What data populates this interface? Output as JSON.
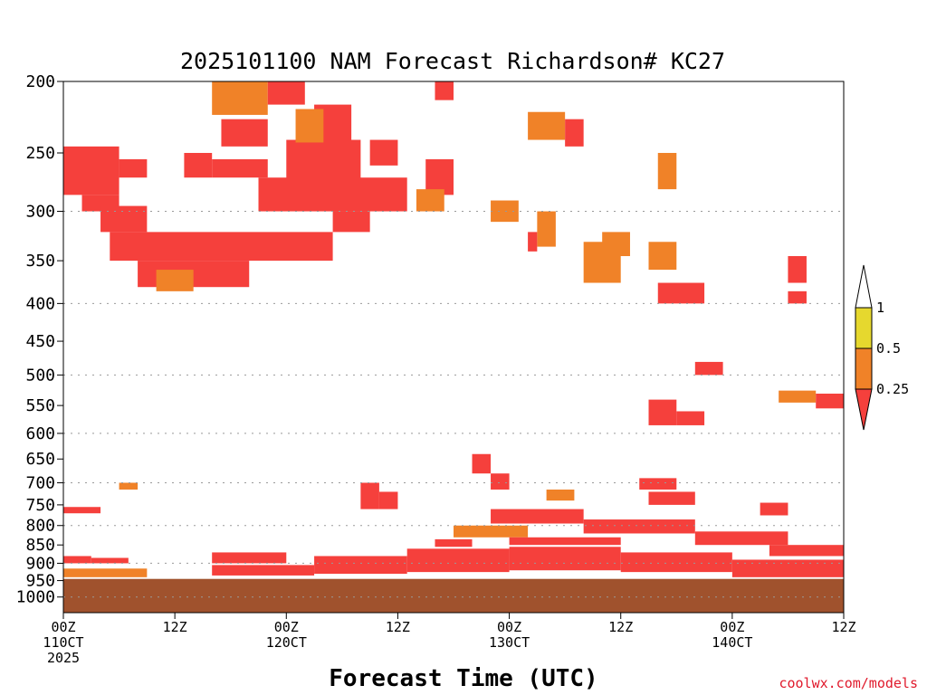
{
  "chart_data": {
    "type": "heatmap",
    "title": "2025101100 NAM Forecast Richardson# KC27",
    "xlabel": "Forecast Time (UTC)",
    "ylabel": "",
    "credit": "coolwx.com/models",
    "x_range_hours": [
      0,
      84
    ],
    "y_range_hpa": [
      1050,
      200
    ],
    "y_scale": "log-pressure",
    "y_ticks": [
      "200",
      "250",
      "300",
      "350",
      "400",
      "450",
      "500",
      "550",
      "600",
      "650",
      "700",
      "750",
      "800",
      "850",
      "900",
      "950",
      "1000"
    ],
    "y_gridlines": [
      300,
      400,
      500,
      600,
      700,
      800,
      900,
      1000
    ],
    "x_ticks": [
      {
        "hour": 0,
        "line1": "00Z",
        "line2": "110CT",
        "line3": "2025"
      },
      {
        "hour": 12,
        "line1": "12Z",
        "line2": "",
        "line3": ""
      },
      {
        "hour": 24,
        "line1": "00Z",
        "line2": "120CT",
        "line3": ""
      },
      {
        "hour": 36,
        "line1": "12Z",
        "line2": "",
        "line3": ""
      },
      {
        "hour": 48,
        "line1": "00Z",
        "line2": "130CT",
        "line3": ""
      },
      {
        "hour": 60,
        "line1": "12Z",
        "line2": "",
        "line3": ""
      },
      {
        "hour": 72,
        "line1": "00Z",
        "line2": "140CT",
        "line3": ""
      },
      {
        "hour": 84,
        "line1": "12Z",
        "line2": "",
        "line3": ""
      }
    ],
    "legend": {
      "position": "right",
      "labels": [
        "1",
        "0.5",
        "0.25"
      ],
      "bins": [
        {
          "range": "0.5 - 1",
          "color": "#e6d82e"
        },
        {
          "range": "0.25 - 0.5",
          "color": "#f08228"
        },
        {
          "range": "< 0.25",
          "color": "#f5403c"
        }
      ]
    },
    "colors": {
      "low": "#f5403c",
      "mid": "#f08228",
      "high": "#e6d82e",
      "ground": "#a0522d"
    },
    "regions": [
      {
        "t0": 0,
        "t1": 6,
        "p0": 245,
        "p1": 285,
        "bin": "low"
      },
      {
        "t0": 2,
        "t1": 6,
        "p0": 285,
        "p1": 300,
        "bin": "low"
      },
      {
        "t0": 4,
        "t1": 9,
        "p0": 295,
        "p1": 320,
        "bin": "low"
      },
      {
        "t0": 5,
        "t1": 29,
        "p0": 320,
        "p1": 350,
        "bin": "low"
      },
      {
        "t0": 8,
        "t1": 20,
        "p0": 350,
        "p1": 380,
        "bin": "low"
      },
      {
        "t0": 10,
        "t1": 14,
        "p0": 360,
        "p1": 385,
        "bin": "mid"
      },
      {
        "t0": 6,
        "t1": 9,
        "p0": 255,
        "p1": 270,
        "bin": "low"
      },
      {
        "t0": 13,
        "t1": 16,
        "p0": 250,
        "p1": 270,
        "bin": "low"
      },
      {
        "t0": 16,
        "t1": 22,
        "p0": 255,
        "p1": 270,
        "bin": "low"
      },
      {
        "t0": 17,
        "t1": 22,
        "p0": 225,
        "p1": 245,
        "bin": "low"
      },
      {
        "t0": 16,
        "t1": 22,
        "p0": 200,
        "p1": 222,
        "bin": "mid"
      },
      {
        "t0": 22,
        "t1": 26,
        "p0": 200,
        "p1": 215,
        "bin": "low"
      },
      {
        "t0": 21,
        "t1": 37,
        "p0": 270,
        "p1": 300,
        "bin": "low"
      },
      {
        "t0": 24,
        "t1": 32,
        "p0": 240,
        "p1": 272,
        "bin": "low"
      },
      {
        "t0": 27,
        "t1": 31,
        "p0": 215,
        "p1": 245,
        "bin": "low"
      },
      {
        "t0": 25,
        "t1": 28,
        "p0": 218,
        "p1": 242,
        "bin": "mid"
      },
      {
        "t0": 29,
        "t1": 33,
        "p0": 300,
        "p1": 320,
        "bin": "low"
      },
      {
        "t0": 33,
        "t1": 36,
        "p0": 240,
        "p1": 260,
        "bin": "low"
      },
      {
        "t0": 39,
        "t1": 42,
        "p0": 255,
        "p1": 285,
        "bin": "low"
      },
      {
        "t0": 40,
        "t1": 42,
        "p0": 200,
        "p1": 212,
        "bin": "low"
      },
      {
        "t0": 38,
        "t1": 41,
        "p0": 280,
        "p1": 300,
        "bin": "mid"
      },
      {
        "t0": 46,
        "t1": 49,
        "p0": 290,
        "p1": 310,
        "bin": "mid"
      },
      {
        "t0": 50,
        "t1": 54,
        "p0": 220,
        "p1": 240,
        "bin": "mid"
      },
      {
        "t0": 54,
        "t1": 56,
        "p0": 225,
        "p1": 245,
        "bin": "low"
      },
      {
        "t0": 51,
        "t1": 53,
        "p0": 300,
        "p1": 335,
        "bin": "mid"
      },
      {
        "t0": 50,
        "t1": 51,
        "p0": 320,
        "p1": 340,
        "bin": "low"
      },
      {
        "t0": 56,
        "t1": 60,
        "p0": 330,
        "p1": 375,
        "bin": "mid"
      },
      {
        "t0": 58,
        "t1": 61,
        "p0": 320,
        "p1": 345,
        "bin": "mid"
      },
      {
        "t0": 64,
        "t1": 66,
        "p0": 250,
        "p1": 280,
        "bin": "mid"
      },
      {
        "t0": 63,
        "t1": 66,
        "p0": 330,
        "p1": 360,
        "bin": "mid"
      },
      {
        "t0": 64,
        "t1": 69,
        "p0": 375,
        "p1": 400,
        "bin": "low"
      },
      {
        "t0": 78,
        "t1": 80,
        "p0": 345,
        "p1": 375,
        "bin": "low"
      },
      {
        "t0": 78,
        "t1": 80,
        "p0": 385,
        "p1": 400,
        "bin": "low"
      },
      {
        "t0": 63,
        "t1": 66,
        "p0": 540,
        "p1": 585,
        "bin": "low"
      },
      {
        "t0": 66,
        "t1": 69,
        "p0": 560,
        "p1": 585,
        "bin": "low"
      },
      {
        "t0": 68,
        "t1": 71,
        "p0": 480,
        "p1": 500,
        "bin": "low"
      },
      {
        "t0": 77,
        "t1": 81,
        "p0": 525,
        "p1": 545,
        "bin": "mid"
      },
      {
        "t0": 81,
        "t1": 84,
        "p0": 530,
        "p1": 555,
        "bin": "low"
      },
      {
        "t0": 6,
        "t1": 8,
        "p0": 700,
        "p1": 715,
        "bin": "mid"
      },
      {
        "t0": 0,
        "t1": 4,
        "p0": 755,
        "p1": 770,
        "bin": "low"
      },
      {
        "t0": 32,
        "t1": 34,
        "p0": 700,
        "p1": 760,
        "bin": "low"
      },
      {
        "t0": 34,
        "t1": 36,
        "p0": 720,
        "p1": 760,
        "bin": "low"
      },
      {
        "t0": 44,
        "t1": 46,
        "p0": 640,
        "p1": 680,
        "bin": "low"
      },
      {
        "t0": 46,
        "t1": 48,
        "p0": 680,
        "p1": 715,
        "bin": "low"
      },
      {
        "t0": 52,
        "t1": 55,
        "p0": 715,
        "p1": 740,
        "bin": "mid"
      },
      {
        "t0": 62,
        "t1": 66,
        "p0": 690,
        "p1": 715,
        "bin": "low"
      },
      {
        "t0": 63,
        "t1": 68,
        "p0": 720,
        "p1": 750,
        "bin": "low"
      },
      {
        "t0": 75,
        "t1": 78,
        "p0": 745,
        "p1": 775,
        "bin": "low"
      },
      {
        "t0": 46,
        "t1": 56,
        "p0": 760,
        "p1": 795,
        "bin": "low"
      },
      {
        "t0": 56,
        "t1": 68,
        "p0": 785,
        "p1": 820,
        "bin": "low"
      },
      {
        "t0": 68,
        "t1": 78,
        "p0": 815,
        "p1": 850,
        "bin": "low"
      },
      {
        "t0": 42,
        "t1": 50,
        "p0": 800,
        "p1": 830,
        "bin": "mid"
      },
      {
        "t0": 76,
        "t1": 84,
        "p0": 850,
        "p1": 880,
        "bin": "low"
      },
      {
        "t0": 0,
        "t1": 3,
        "p0": 880,
        "p1": 900,
        "bin": "low"
      },
      {
        "t0": 3,
        "t1": 7,
        "p0": 885,
        "p1": 900,
        "bin": "low"
      },
      {
        "t0": 0,
        "t1": 9,
        "p0": 915,
        "p1": 940,
        "bin": "mid"
      },
      {
        "t0": 16,
        "t1": 24,
        "p0": 870,
        "p1": 900,
        "bin": "low"
      },
      {
        "t0": 16,
        "t1": 27,
        "p0": 905,
        "p1": 935,
        "bin": "low"
      },
      {
        "t0": 27,
        "t1": 37,
        "p0": 880,
        "p1": 930,
        "bin": "low"
      },
      {
        "t0": 37,
        "t1": 48,
        "p0": 860,
        "p1": 925,
        "bin": "low"
      },
      {
        "t0": 48,
        "t1": 60,
        "p0": 855,
        "p1": 920,
        "bin": "low"
      },
      {
        "t0": 60,
        "t1": 72,
        "p0": 870,
        "p1": 925,
        "bin": "low"
      },
      {
        "t0": 72,
        "t1": 84,
        "p0": 890,
        "p1": 940,
        "bin": "low"
      },
      {
        "t0": 40,
        "t1": 44,
        "p0": 835,
        "p1": 855,
        "bin": "low"
      },
      {
        "t0": 48,
        "t1": 60,
        "p0": 830,
        "p1": 850,
        "bin": "low"
      }
    ]
  }
}
